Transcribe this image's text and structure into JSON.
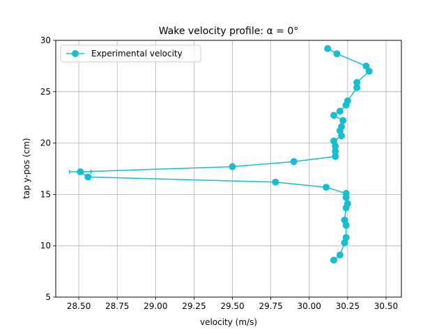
{
  "chart_data": {
    "type": "line",
    "title": "Wake velocity profile: α = 0°",
    "xlabel": "velocity (m/s)",
    "ylabel": "tap y-pos (cm)",
    "xlim": [
      28.35,
      30.6
    ],
    "ylim": [
      5,
      30
    ],
    "xticks": [
      28.5,
      28.75,
      29.0,
      29.25,
      29.5,
      29.75,
      30.0,
      30.25,
      30.5
    ],
    "xtick_labels": [
      "28.50",
      "28.75",
      "29.00",
      "29.25",
      "29.50",
      "29.75",
      "30.00",
      "30.25",
      "30.50"
    ],
    "yticks": [
      5,
      10,
      15,
      20,
      25,
      30
    ],
    "ytick_labels": [
      "5",
      "10",
      "15",
      "20",
      "25",
      "30"
    ],
    "grid": true,
    "legend_position": "top-left",
    "series": [
      {
        "name": "Experimental velocity",
        "color": "#17becf",
        "marker": "circle",
        "points": [
          {
            "x": 30.12,
            "y": 29.2
          },
          {
            "x": 30.18,
            "y": 28.7
          },
          {
            "x": 30.37,
            "y": 27.5
          },
          {
            "x": 30.39,
            "y": 27.0
          },
          {
            "x": 30.31,
            "y": 25.9
          },
          {
            "x": 30.31,
            "y": 25.4
          },
          {
            "x": 30.25,
            "y": 24.1
          },
          {
            "x": 30.24,
            "y": 23.7
          },
          {
            "x": 30.2,
            "y": 23.1
          },
          {
            "x": 30.16,
            "y": 22.7
          },
          {
            "x": 30.22,
            "y": 22.2
          },
          {
            "x": 30.21,
            "y": 21.6
          },
          {
            "x": 30.2,
            "y": 21.2
          },
          {
            "x": 30.21,
            "y": 20.7
          },
          {
            "x": 30.16,
            "y": 20.2
          },
          {
            "x": 30.17,
            "y": 19.7
          },
          {
            "x": 30.17,
            "y": 19.2
          },
          {
            "x": 30.17,
            "y": 18.7
          },
          {
            "x": 29.9,
            "y": 18.2
          },
          {
            "x": 29.5,
            "y": 17.7
          },
          {
            "x": 28.51,
            "y": 17.2,
            "xerr": 0.07
          },
          {
            "x": 28.56,
            "y": 16.7
          },
          {
            "x": 29.78,
            "y": 16.2
          },
          {
            "x": 30.11,
            "y": 15.7
          },
          {
            "x": 30.24,
            "y": 15.1
          },
          {
            "x": 30.24,
            "y": 14.7
          },
          {
            "x": 30.25,
            "y": 14.1
          },
          {
            "x": 30.24,
            "y": 13.7
          },
          {
            "x": 30.23,
            "y": 12.5
          },
          {
            "x": 30.24,
            "y": 12.0
          },
          {
            "x": 30.24,
            "y": 10.8
          },
          {
            "x": 30.23,
            "y": 10.3
          },
          {
            "x": 30.2,
            "y": 9.1
          },
          {
            "x": 30.16,
            "y": 8.6
          }
        ]
      }
    ]
  }
}
